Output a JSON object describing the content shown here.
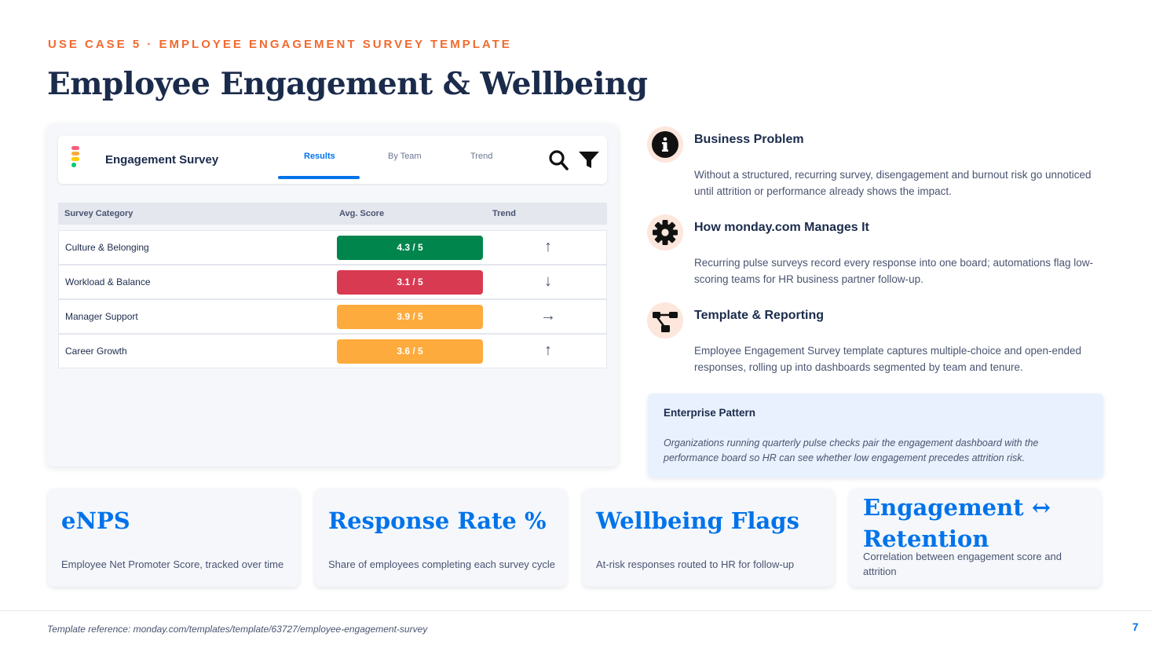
{
  "header": {
    "kicker": "USE CASE 5 · EMPLOYEE ENGAGEMENT SURVEY TEMPLATE",
    "title": "Employee Engagement & Wellbeing"
  },
  "app": {
    "name": "Engagement Survey",
    "tabs": [
      {
        "label": "Results",
        "active": true
      },
      {
        "label": "By Team",
        "active": false
      },
      {
        "label": "Trend",
        "active": false
      }
    ],
    "icons": [
      "search-icon",
      "filter-icon"
    ]
  },
  "table": {
    "columns": [
      "Survey Category",
      "Avg. Score",
      "Trend"
    ],
    "rows": [
      {
        "category": "Culture & Belonging",
        "score": "4.3 / 5",
        "color": "#00854d",
        "trend": "↑"
      },
      {
        "category": "Workload & Balance",
        "score": "3.1 / 5",
        "color": "#d83a52",
        "trend": "↓"
      },
      {
        "category": "Manager Support",
        "score": "3.9 / 5",
        "color": "#fdab3d",
        "trend": "→"
      },
      {
        "category": "Career Growth",
        "score": "3.6 / 5",
        "color": "#fdab3d",
        "trend": "↑"
      }
    ]
  },
  "features": [
    {
      "icon": "info-icon",
      "title": "Business Problem",
      "body": "Without a structured, recurring survey, disengagement and burnout risk go unnoticed until attrition or performance already shows the impact."
    },
    {
      "icon": "gear-icon",
      "title": "How monday.com Manages It",
      "body": "Recurring pulse surveys record every response into one board; automations flag low-scoring teams for HR business partner follow-up."
    },
    {
      "icon": "hierarchy-icon",
      "title": "Template & Reporting",
      "body": "Employee Engagement Survey template captures multiple-choice and open-ended responses, rolling up into dashboards segmented by team and tenure."
    }
  ],
  "enterprise": {
    "title": "Enterprise Pattern",
    "body": "Organizations running quarterly pulse checks pair the engagement dashboard with the performance board so HR can see whether low engagement precedes attrition risk."
  },
  "cards": [
    {
      "title": "eNPS",
      "body": "Employee Net Promoter Score, tracked over time"
    },
    {
      "title": "Response Rate %",
      "body": "Share of employees completing each survey cycle"
    },
    {
      "title": "Wellbeing Flags",
      "body": "At-risk responses routed to HR for follow-up"
    },
    {
      "title": "Engagement ↔ Retention",
      "body": "Correlation between engagement score and attrition"
    }
  ],
  "footer": {
    "reference": "Template reference: monday.com/templates/template/63727/employee-engagement-survey",
    "page": "7"
  },
  "colors": {
    "accent": "#f06a2f",
    "brand_blue": "#0073ea",
    "navy": "#1b2b4b",
    "logo": [
      "#f65f7c",
      "#fdab3d",
      "#ffcb00",
      "#00ca72"
    ]
  }
}
